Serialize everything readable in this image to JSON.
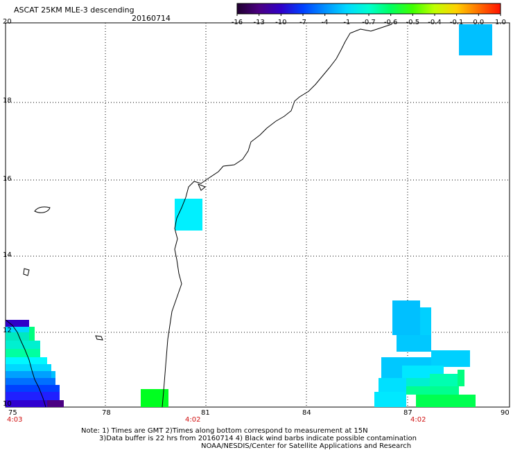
{
  "header": {
    "title": "ASCAT 25KM MLE-3 descending",
    "date": "20160714"
  },
  "colorbar": {
    "labels": [
      "-16",
      "-13",
      "-10",
      "-7",
      "-4",
      "-1",
      "-0.7",
      "-0.6",
      "-0.5",
      "-0.4",
      "-0.1",
      "0.0",
      "1.0"
    ],
    "colors": [
      "#200030",
      "#4b0082",
      "#3000c8",
      "#0040ff",
      "#0090ff",
      "#00d8ff",
      "#00ffd0",
      "#00ff60",
      "#40ff00",
      "#c0ff00",
      "#ffd000",
      "#ff7000",
      "#ff1000"
    ]
  },
  "map": {
    "lon_ticks": [
      "75",
      "78",
      "81",
      "84",
      "87",
      "90"
    ],
    "lat_ticks": [
      "20",
      "18",
      "16",
      "14",
      "12",
      "10"
    ],
    "pass_times": [
      {
        "lon": 75,
        "label": "4:03"
      },
      {
        "lon": 80.8,
        "label": "4:02"
      },
      {
        "lon": 87.2,
        "label": "4:02"
      }
    ],
    "lon_range": [
      75,
      90
    ],
    "lat_range": [
      10,
      20
    ]
  },
  "notes": {
    "line1": "Note: 1) Times are GMT 2)Times along bottom correspond to measurement at 15N",
    "line2": "3)Data buffer is 22 hrs from 20160714 4) Black wind barbs indicate possible contamination",
    "line3": "NOAA/NESDIS/Center for Satellite Applications and Research"
  }
}
